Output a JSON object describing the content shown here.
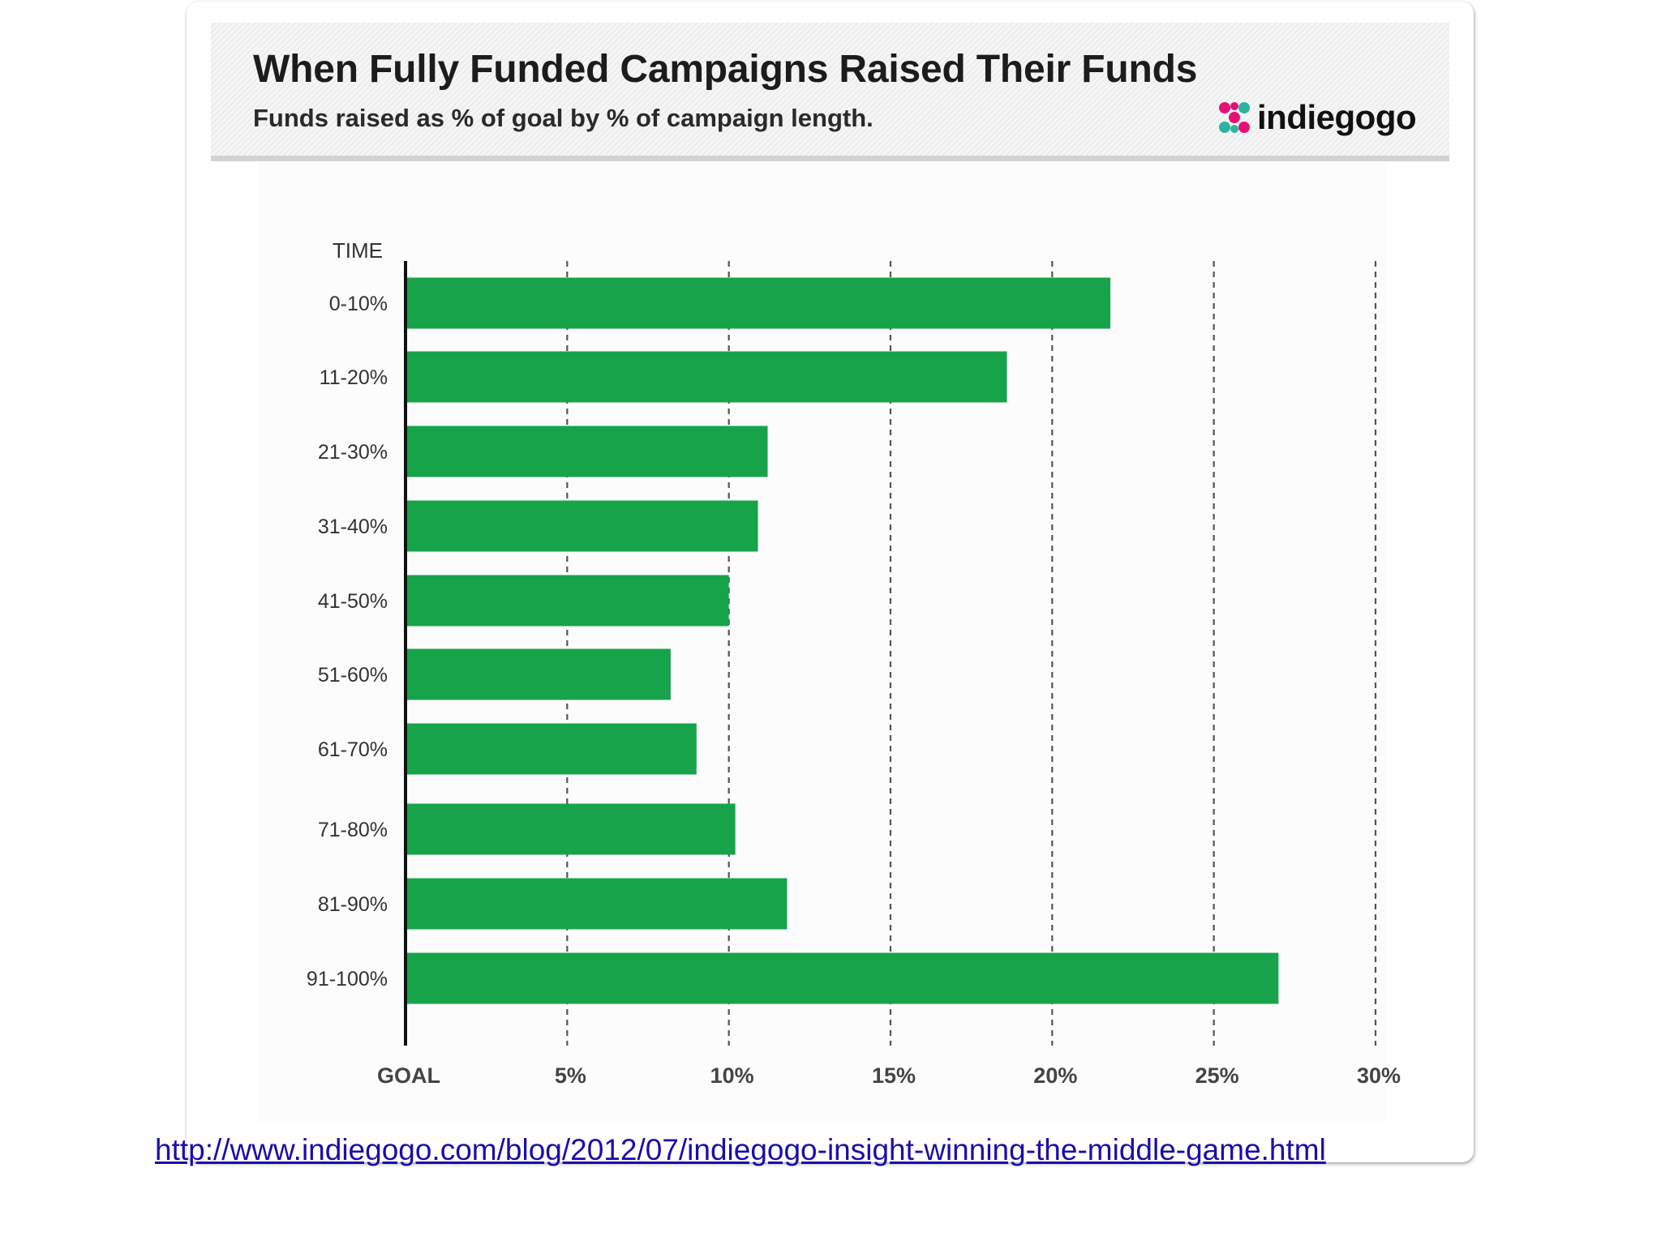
{
  "header": {
    "title": "When Fully Funded Campaigns Raised Their Funds",
    "subtitle": "Funds raised as % of goal by % of campaign length.",
    "logo_text": "indiegogo",
    "logo_icon": "indiegogo-logo-icon"
  },
  "chart_data": {
    "type": "bar",
    "orientation": "horizontal",
    "title": "When Fully Funded Campaigns Raised Their Funds",
    "subtitle": "Funds raised as % of goal by % of campaign length.",
    "ylabel": "TIME",
    "categories": [
      "0-10%",
      "11-20%",
      "21-30%",
      "31-40%",
      "41-50%",
      "51-60%",
      "61-70%",
      "71-80%",
      "81-90%",
      "91-100%"
    ],
    "values": [
      21.8,
      18.6,
      11.2,
      10.9,
      10.0,
      8.2,
      9.0,
      10.2,
      11.8,
      27.0
    ],
    "x_ticks": [
      {
        "value": 0,
        "label": "GOAL"
      },
      {
        "value": 5,
        "label": "5%"
      },
      {
        "value": 10,
        "label": "10%"
      },
      {
        "value": 15,
        "label": "15%"
      },
      {
        "value": 20,
        "label": "20%"
      },
      {
        "value": 25,
        "label": "25%"
      },
      {
        "value": 30,
        "label": "30%"
      }
    ],
    "xlim": [
      0,
      30
    ],
    "grid": "vertical dashed",
    "legend": "none",
    "bar_color": "#17a34a",
    "grid_color": "#555555"
  },
  "footer": {
    "source_url": "http://www.indiegogo.com/blog/2012/07/indiegogo-insight-winning-the-middle-game.html"
  }
}
